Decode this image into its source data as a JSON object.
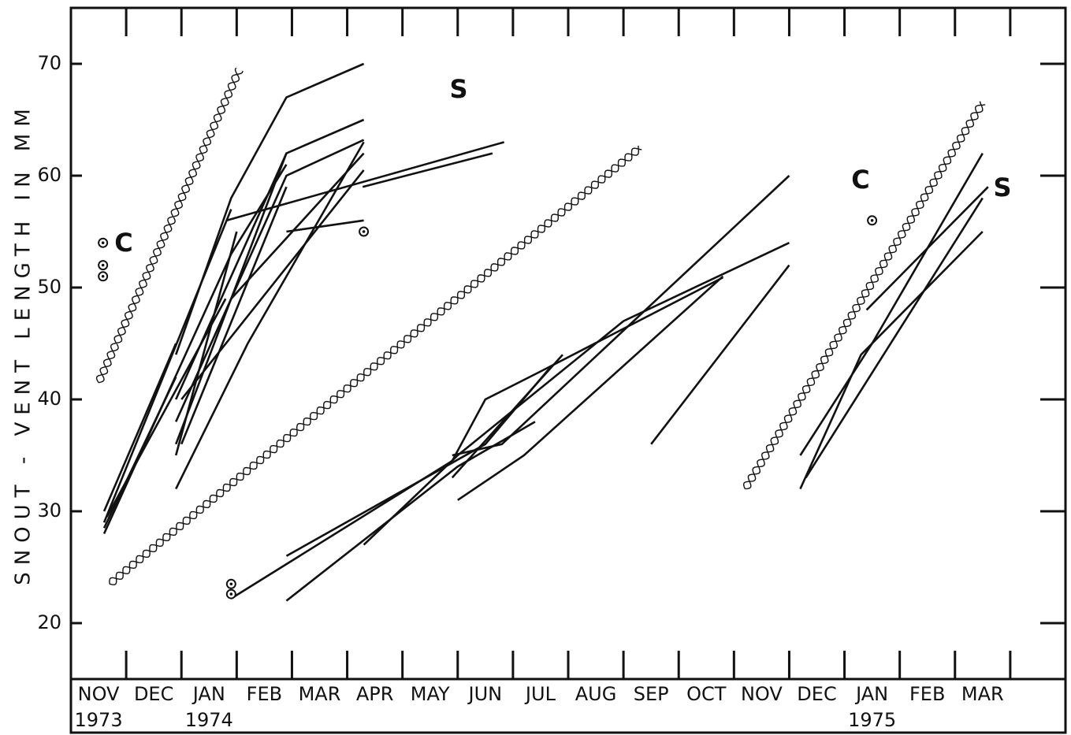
{
  "chart_data": {
    "type": "line",
    "ylabel": "SNOUT - VENT LENGTH IN MM",
    "categories": [
      "NOV",
      "DEC",
      "JAN",
      "FEB",
      "MAR",
      "APR",
      "MAY",
      "JUN",
      "JUL",
      "AUG",
      "SEP",
      "OCT",
      "NOV",
      "DEC",
      "JAN",
      "FEB",
      "MAR"
    ],
    "years": [
      "1973",
      null,
      "1974",
      null,
      null,
      null,
      null,
      null,
      null,
      null,
      null,
      null,
      null,
      null,
      "1975",
      null,
      null
    ],
    "xlim": [
      0,
      18
    ],
    "xticks": [
      1,
      2,
      3,
      4,
      5,
      6,
      7,
      8,
      9,
      10,
      11,
      12,
      13,
      14,
      15,
      16,
      17
    ],
    "ylim": [
      15,
      75
    ],
    "yticks": [
      20,
      30,
      40,
      50,
      60,
      70
    ],
    "color": "#111111",
    "series": [
      {
        "x": [
          0.6,
          1.9
        ],
        "values": [
          30,
          45
        ]
      },
      {
        "x": [
          0.6,
          2.9
        ],
        "values": [
          29,
          57
        ]
      },
      {
        "x": [
          0.6,
          2.9
        ],
        "values": [
          28,
          53
        ]
      },
      {
        "x": [
          0.6,
          1.9
        ],
        "values": [
          28.5,
          42
        ]
      },
      {
        "x": [
          0.65,
          2.8
        ],
        "values": [
          29.5,
          49
        ]
      },
      {
        "x": [
          1.9,
          2.9,
          3.9,
          5.3
        ],
        "values": [
          44,
          58,
          67,
          70
        ]
      },
      {
        "x": [
          1.9,
          3.9,
          5.3
        ],
        "values": [
          40,
          62,
          65
        ]
      },
      {
        "x": [
          1.9,
          3.9,
          5.3
        ],
        "values": [
          38,
          60,
          63.2
        ]
      },
      {
        "x": [
          2.82,
          7.84
        ],
        "values": [
          56,
          63
        ]
      },
      {
        "x": [
          5.28,
          7.63
        ],
        "values": [
          59,
          62
        ]
      },
      {
        "x": [
          1.9,
          3.9
        ],
        "values": [
          36,
          62
        ]
      },
      {
        "x": [
          1.9,
          3.0
        ],
        "values": [
          35,
          55
        ]
      },
      {
        "x": [
          1.9,
          3.2,
          5.3
        ],
        "values": [
          32,
          45,
          63
        ]
      },
      {
        "x": [
          2.0,
          3.9
        ],
        "values": [
          36,
          59
        ]
      },
      {
        "x": [
          2.9,
          5.3
        ],
        "values": [
          49,
          62
        ]
      },
      {
        "x": [
          2.0,
          5.3
        ],
        "values": [
          40,
          60.5
        ]
      },
      {
        "x": [
          3.9,
          5.3
        ],
        "values": [
          55,
          56
        ]
      },
      {
        "x": [
          2.9,
          3.9
        ],
        "values": [
          53,
          61
        ]
      },
      {
        "x": [
          2.9,
          6.9,
          7.5,
          8.5,
          11.8
        ],
        "values": [
          22.2,
          34.5,
          40,
          42.5,
          50.9
        ]
      },
      {
        "x": [
          3.9,
          7.5,
          8.7
        ],
        "values": [
          26,
          36,
          43
        ]
      },
      {
        "x": [
          3.9,
          7.0,
          8.4
        ],
        "values": [
          22,
          34,
          38
        ]
      },
      {
        "x": [
          5.3,
          7.0,
          10.0,
          13.0
        ],
        "values": [
          27,
          35,
          47,
          54
        ]
      },
      {
        "x": [
          6.9,
          7.8,
          13.0
        ],
        "values": [
          35,
          36,
          60
        ]
      },
      {
        "x": [
          7.0,
          8.2,
          11.8
        ],
        "values": [
          31,
          35,
          51
        ]
      },
      {
        "x": [
          6.9,
          8.9
        ],
        "values": [
          33,
          44
        ]
      },
      {
        "x": [
          10.5,
          13.0
        ],
        "values": [
          36,
          52
        ]
      },
      {
        "x": [
          13.2,
          14.5,
          16.5
        ],
        "values": [
          35,
          45,
          62
        ]
      },
      {
        "x": [
          13.2,
          14.3,
          16.5
        ],
        "values": [
          32,
          44,
          55
        ]
      },
      {
        "x": [
          14.4,
          16.6
        ],
        "values": [
          48,
          59
        ]
      },
      {
        "x": [
          13.3,
          16.5
        ],
        "values": [
          33,
          58
        ]
      }
    ],
    "points": {
      "x": [
        0.58,
        0.58,
        0.58,
        2.9,
        2.9,
        5.3,
        14.5
      ],
      "values": [
        54,
        52,
        51,
        23.5,
        22.6,
        55,
        56
      ]
    },
    "wavy": [
      {
        "x": [
          0.5,
          3.05
        ],
        "values": [
          41.5,
          69.5
        ]
      },
      {
        "x": [
          0.7,
          10.3
        ],
        "values": [
          23.5,
          62.5
        ]
      },
      {
        "x": [
          12.2,
          16.5
        ],
        "values": [
          32,
          66.5
        ]
      }
    ],
    "annotations": [
      "S",
      "C",
      "C",
      "S"
    ]
  }
}
